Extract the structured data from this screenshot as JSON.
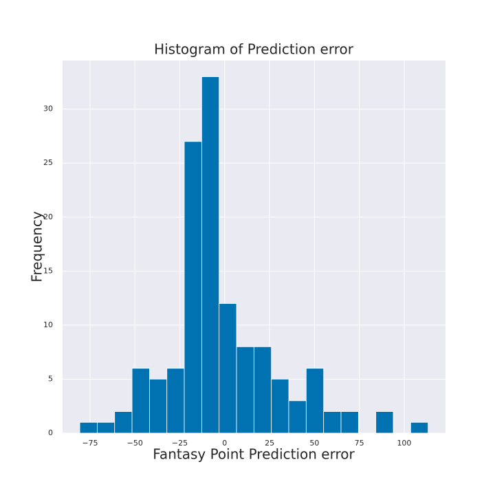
{
  "chart_data": {
    "type": "histogram",
    "title": "Histogram of Prediction error",
    "x_label": "Fantasy Point Prediction error",
    "y_label": "Frequency",
    "bins": [
      -80.7,
      -71.0,
      -61.3,
      -51.6,
      -41.9,
      -32.2,
      -22.5,
      -12.8,
      -3.1,
      6.6,
      16.3,
      26.0,
      35.7,
      45.4,
      55.1,
      64.8,
      74.5,
      84.2,
      93.9,
      103.6,
      113.3
    ],
    "values": [
      1,
      1,
      2,
      6,
      5,
      6,
      27,
      33,
      12,
      8,
      8,
      5,
      3,
      6,
      2,
      2,
      0,
      2,
      0,
      1
    ],
    "color": "#0072b2",
    "background": "#eaeaf2",
    "grid": true,
    "xlim": [
      -90.3,
      123
    ],
    "xticks": [
      {
        "value": -75,
        "label": "−75"
      },
      {
        "value": -50,
        "label": "−50"
      },
      {
        "value": -25,
        "label": "−25"
      },
      0,
      25,
      50,
      75,
      100
    ],
    "ylim": [
      0,
      34.5
    ],
    "yticks": [
      0,
      5,
      10,
      15,
      20,
      25,
      30
    ]
  }
}
